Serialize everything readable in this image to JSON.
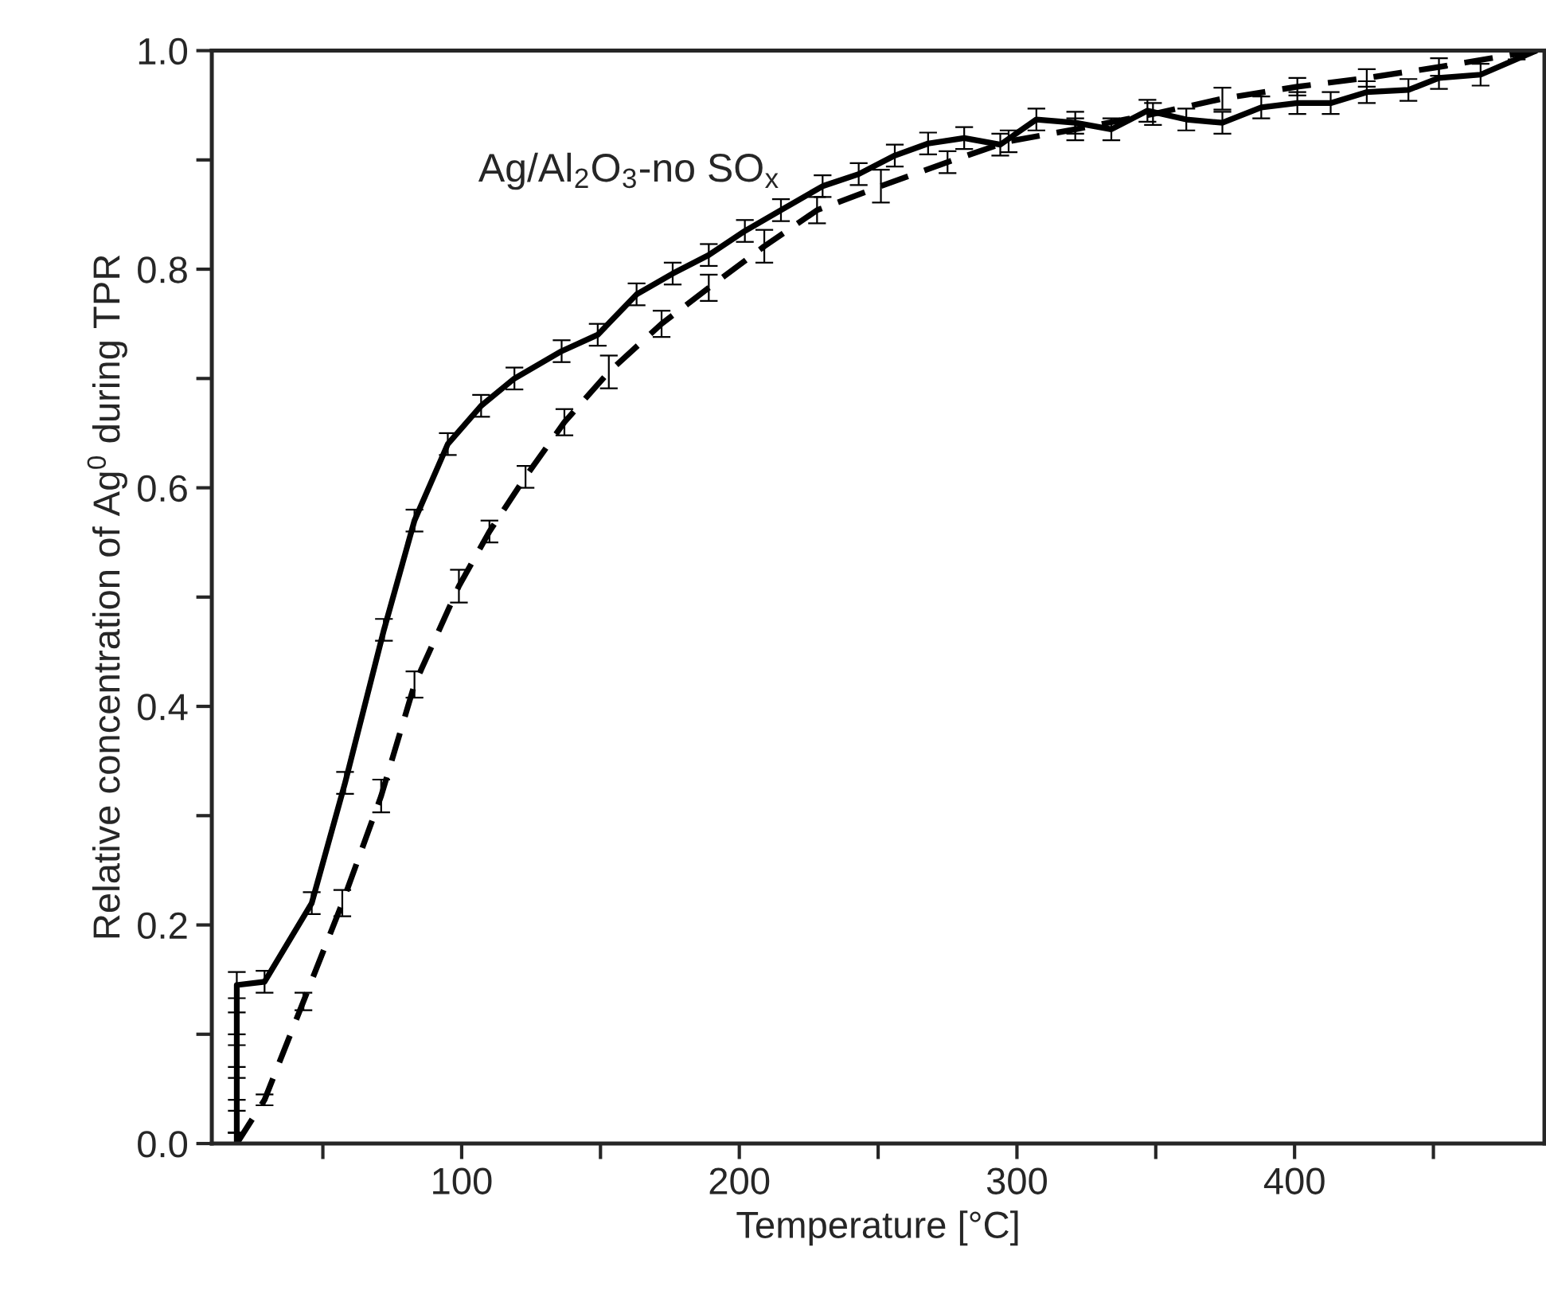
{
  "chart_data": {
    "type": "line",
    "xlabel": "Temperature [°C]",
    "ylabel": "Relative concentration of Ag$^{0}$ during TPR",
    "annotations": [
      "Ag/Al$_{2}$O$_{3}$-no SO$_{x}$"
    ],
    "xlim": [
      10,
      490
    ],
    "ylim": [
      0,
      1.0
    ],
    "xticks": [
      {
        "value": 50,
        "label": null
      },
      100,
      {
        "value": 150,
        "label": null
      },
      200,
      {
        "value": 250,
        "label": null
      },
      300,
      {
        "value": 350,
        "label": null
      },
      400,
      {
        "value": 450,
        "label": null
      }
    ],
    "yticks": [
      {
        "value": 0,
        "label": "0.0"
      },
      {
        "value": 0.1,
        "label": null
      },
      0.2,
      {
        "value": 0.3,
        "label": null
      },
      0.4,
      {
        "value": 0.5,
        "label": null
      },
      0.6,
      {
        "value": 0.7,
        "label": null
      },
      0.8,
      {
        "value": 0.9,
        "label": null
      },
      {
        "value": 1.0,
        "label": "1.0"
      }
    ],
    "grid": false,
    "legend": false,
    "marker": "none",
    "series": [
      {
        "color": "#000000",
        "line_style": "solid",
        "x": [
          19,
          19,
          19,
          19,
          19,
          19,
          29,
          46,
          58,
          72,
          83,
          95,
          107,
          119,
          136,
          149,
          163,
          176,
          189,
          202,
          215,
          230,
          243,
          256,
          268,
          281,
          294,
          307,
          321,
          334,
          347,
          361,
          374,
          388,
          401,
          413,
          426,
          441,
          452,
          467,
          487
        ],
        "values": [
          0,
          0.02,
          0.05,
          0.08,
          0.11,
          0.145,
          0.148,
          0.22,
          0.33,
          0.47,
          0.57,
          0.64,
          0.675,
          0.7,
          0.725,
          0.74,
          0.777,
          0.796,
          0.813,
          0.835,
          0.854,
          0.876,
          0.887,
          0.904,
          0.915,
          0.92,
          0.914,
          0.937,
          0.934,
          0.928,
          0.945,
          0.937,
          0.934,
          0.948,
          0.952,
          0.952,
          0.962,
          0.964,
          0.975,
          0.978,
          1.0
        ],
        "errors": [
          0.01,
          0.01,
          0.01,
          0.01,
          0.01,
          0.012,
          0.01,
          0.01,
          0.01,
          0.01,
          0.01,
          0.01,
          0.01,
          0.01,
          0.01,
          0.01,
          0.01,
          0.01,
          0.01,
          0.01,
          0.01,
          0.01,
          0.01,
          0.01,
          0.01,
          0.01,
          0.01,
          0.01,
          0.01,
          0.01,
          0.01,
          0.01,
          0.01,
          0.01,
          0.01,
          0.01,
          0.01,
          0.01,
          0.01,
          0.01,
          null
        ]
      },
      {
        "color": "#000000",
        "line_style": "dashed",
        "x": [
          19,
          29,
          43,
          57,
          71,
          83,
          99,
          110,
          123,
          137,
          153,
          172,
          189,
          209,
          228,
          251,
          275,
          297,
          321,
          349,
          374,
          401,
          426,
          452,
          480,
          487
        ],
        "values": [
          0.0,
          0.04,
          0.13,
          0.22,
          0.318,
          0.42,
          0.51,
          0.56,
          0.61,
          0.66,
          0.706,
          0.75,
          0.783,
          0.821,
          0.854,
          0.876,
          0.898,
          0.917,
          0.928,
          0.942,
          0.956,
          0.967,
          0.975,
          0.985,
          0.997,
          1.0
        ],
        "errors": [
          0.01,
          0.005,
          0.008,
          0.012,
          0.015,
          0.012,
          0.015,
          0.01,
          0.01,
          0.012,
          0.015,
          0.012,
          0.012,
          0.015,
          0.012,
          0.015,
          0.01,
          0.01,
          0.01,
          0.01,
          0.01,
          0.008,
          0.008,
          0.008,
          0.005,
          null
        ]
      }
    ]
  }
}
